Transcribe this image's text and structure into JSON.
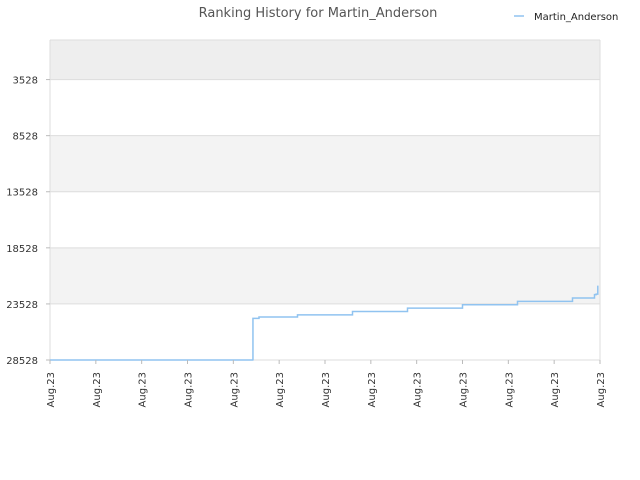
{
  "chart_data": {
    "type": "line",
    "title": "Ranking History for Martin_Anderson",
    "legend_position": "top-right",
    "y_inverted": true,
    "grid": true,
    "ylim": [
      28528,
      0
    ],
    "y_ticks": [
      3528,
      8528,
      13528,
      18528,
      23528,
      28528
    ],
    "y_tick_labels": [
      "3528",
      "8528",
      "13528",
      "18528",
      "23528",
      "28528"
    ],
    "x_tick_labels": [
      "Aug.23",
      "Aug.23",
      "Aug.23",
      "Aug.23",
      "Aug.23",
      "Aug.23",
      "Aug.23",
      "Aug.23",
      "Aug.23",
      "Aug.23",
      "Aug.23",
      "Aug.23",
      "Aug.23"
    ],
    "series": [
      {
        "name": "Martin_Anderson",
        "color": "#90c3f0",
        "x": [
          0,
          0.37,
          0.369,
          0.38,
          0.45,
          0.55,
          0.65,
          0.75,
          0.85,
          0.95,
          0.99,
          0.993,
          0.996
        ],
        "y": [
          28528,
          28528,
          24820,
          24700,
          24500,
          24200,
          23900,
          23600,
          23300,
          23000,
          22700,
          22650,
          21900
        ]
      }
    ]
  }
}
